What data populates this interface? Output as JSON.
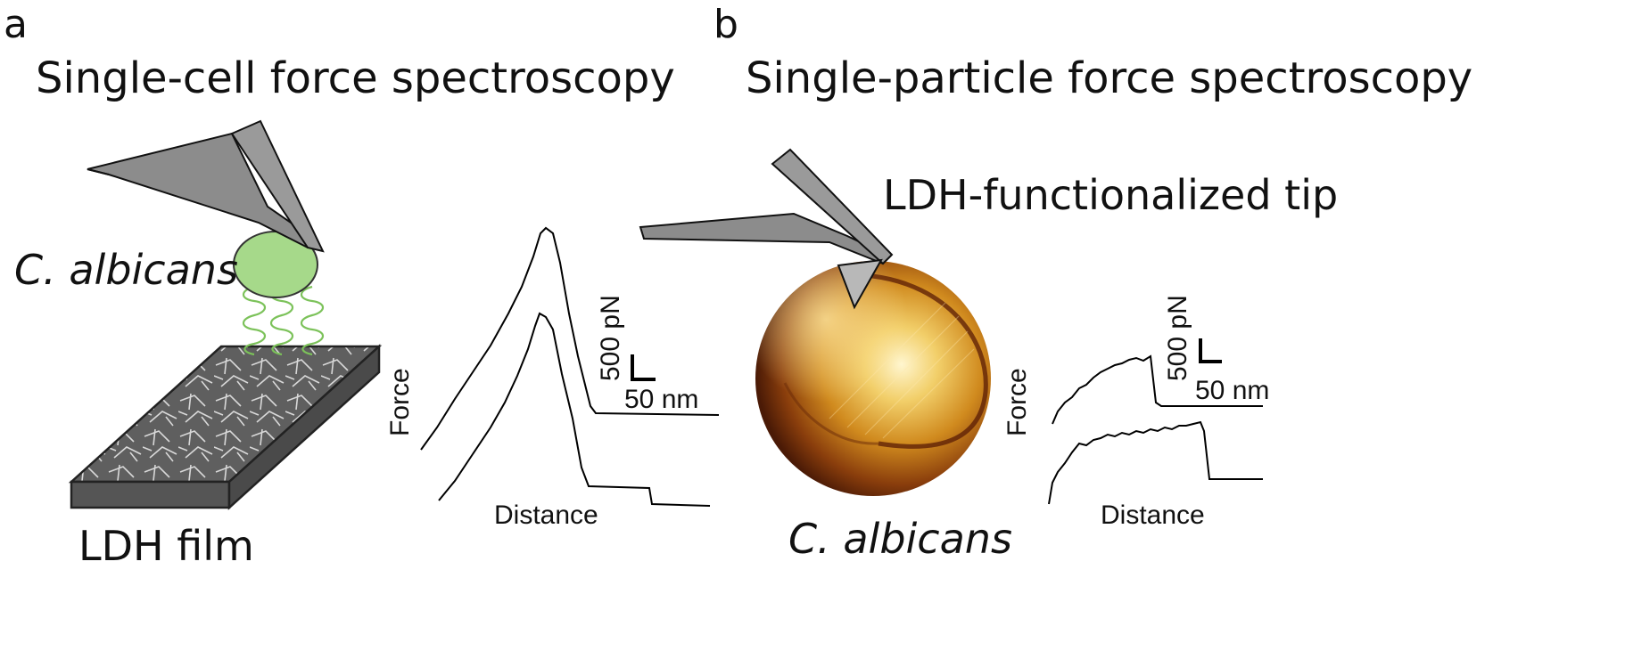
{
  "panel_a": {
    "letter": "a",
    "title": "Single-cell force spectroscopy",
    "cell_label": "C. albicans",
    "film_label": "LDH film",
    "y_axis_label": "Force",
    "x_axis_label": "Distance",
    "scale_force": "500 pN",
    "scale_distance": "50 nm"
  },
  "panel_b": {
    "letter": "b",
    "title": "Single-particle force spectroscopy",
    "tip_label": "LDH-functionalized tip",
    "cell_label": "C. albicans",
    "y_axis_label": "Force",
    "x_axis_label": "Distance",
    "scale_force": "500 pN",
    "scale_distance": "50 nm"
  },
  "colors": {
    "cantilever": "#8c8c8c",
    "cell_green": "#a6d98a",
    "spring_green": "#7cc25a",
    "film_gray": "#6e6e6e",
    "afm_gold": "#d08a1e"
  }
}
